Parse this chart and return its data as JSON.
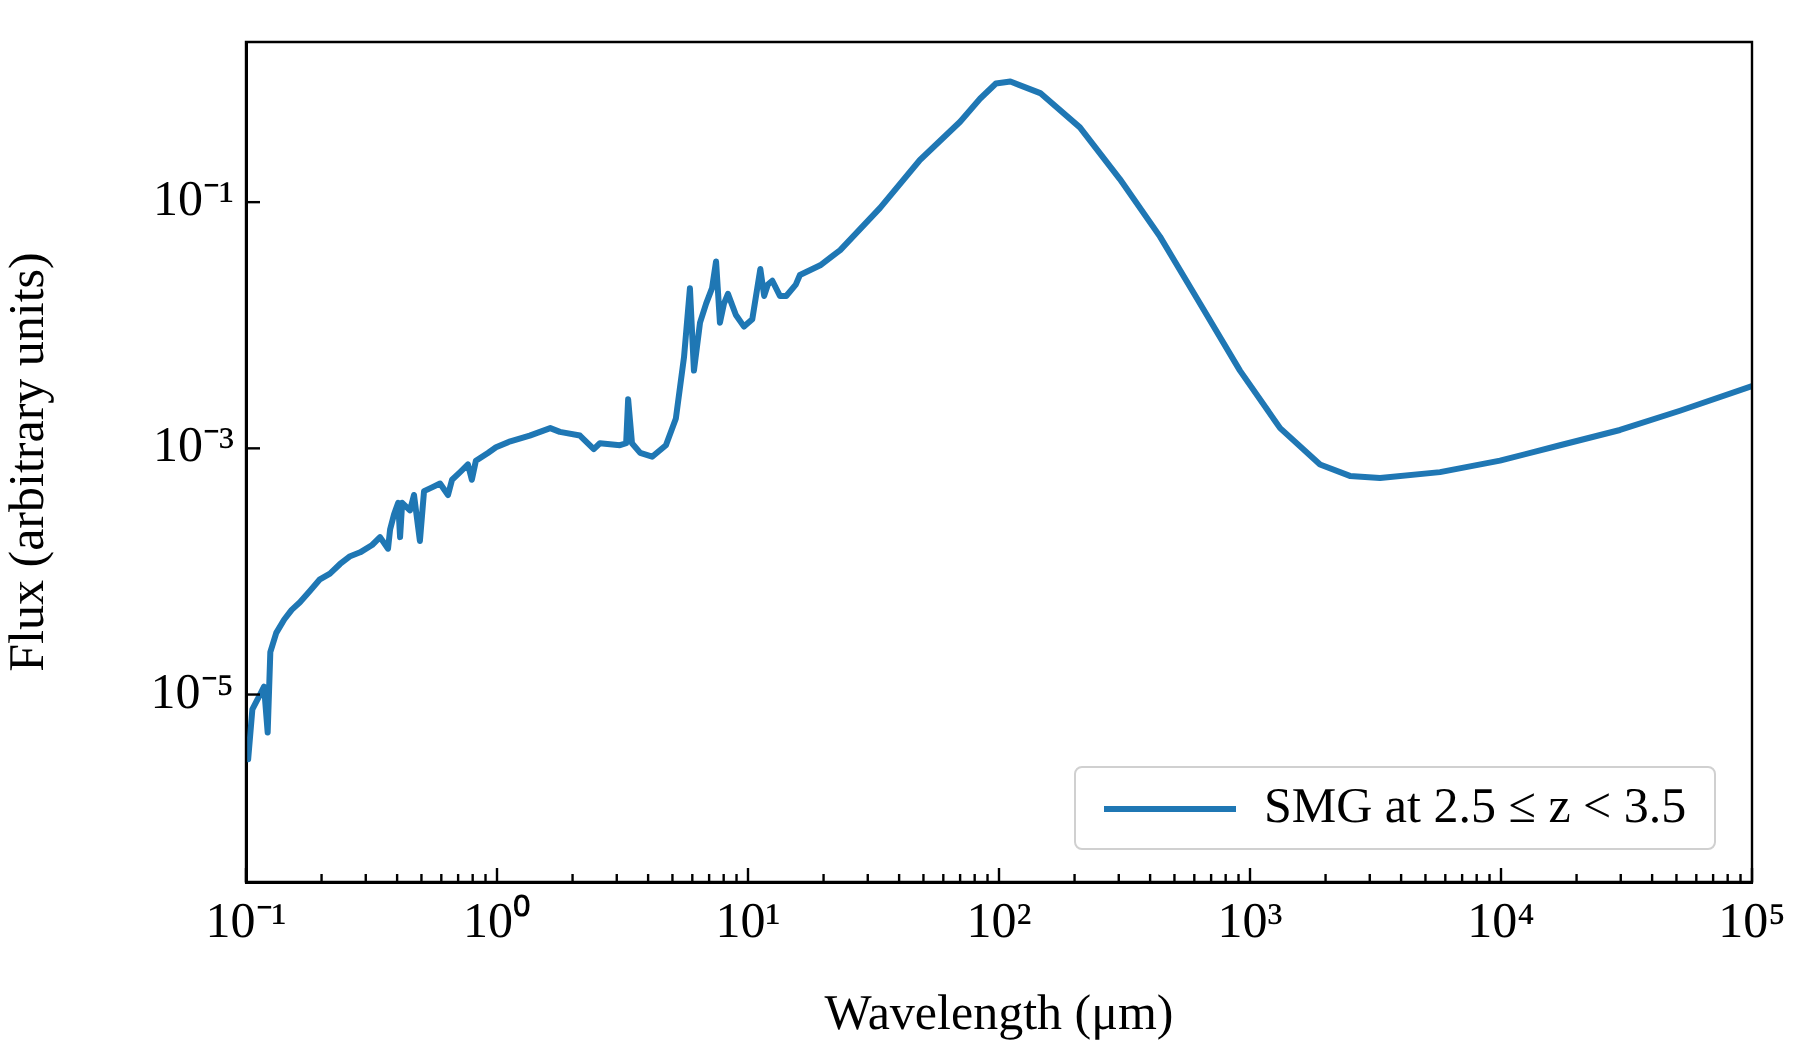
{
  "chart_data": {
    "type": "line",
    "xlabel": "Wavelength (μm)",
    "ylabel": "Flux (arbitrary units)",
    "log": "xy",
    "grid": false,
    "legend": "bottom right",
    "marker": "none",
    "line_style": "solid",
    "xlim": [
      0.1,
      100000
    ],
    "ylim": [
      3e-07,
      2
    ],
    "xticks": [
      {
        "value": 0.1,
        "label": "10⁻¹"
      },
      {
        "value": 0.2,
        "label": null
      },
      {
        "value": 0.3,
        "label": null
      },
      {
        "value": 0.4,
        "label": null
      },
      {
        "value": 0.5,
        "label": null
      },
      {
        "value": 0.6,
        "label": null
      },
      {
        "value": 0.7,
        "label": null
      },
      {
        "value": 0.8,
        "label": null
      },
      {
        "value": 0.9,
        "label": null
      },
      {
        "value": 1,
        "label": "10⁰"
      },
      {
        "value": 2,
        "label": null
      },
      {
        "value": 3,
        "label": null
      },
      {
        "value": 4,
        "label": null
      },
      {
        "value": 5,
        "label": null
      },
      {
        "value": 6,
        "label": null
      },
      {
        "value": 7,
        "label": null
      },
      {
        "value": 8,
        "label": null
      },
      {
        "value": 9,
        "label": null
      },
      {
        "value": 10,
        "label": "10¹"
      },
      {
        "value": 20,
        "label": null
      },
      {
        "value": 30,
        "label": null
      },
      {
        "value": 40,
        "label": null
      },
      {
        "value": 50,
        "label": null
      },
      {
        "value": 60,
        "label": null
      },
      {
        "value": 70,
        "label": null
      },
      {
        "value": 80,
        "label": null
      },
      {
        "value": 90,
        "label": null
      },
      {
        "value": 100,
        "label": "10²"
      },
      {
        "value": 200,
        "label": null
      },
      {
        "value": 300,
        "label": null
      },
      {
        "value": 400,
        "label": null
      },
      {
        "value": 500,
        "label": null
      },
      {
        "value": 600,
        "label": null
      },
      {
        "value": 700,
        "label": null
      },
      {
        "value": 800,
        "label": null
      },
      {
        "value": 900,
        "label": null
      },
      {
        "value": 1000,
        "label": "10³"
      },
      {
        "value": 2000,
        "label": null
      },
      {
        "value": 3000,
        "label": null
      },
      {
        "value": 4000,
        "label": null
      },
      {
        "value": 5000,
        "label": null
      },
      {
        "value": 6000,
        "label": null
      },
      {
        "value": 7000,
        "label": null
      },
      {
        "value": 8000,
        "label": null
      },
      {
        "value": 9000,
        "label": null
      },
      {
        "value": 10000,
        "label": "10⁴"
      },
      {
        "value": 20000,
        "label": null
      },
      {
        "value": 30000,
        "label": null
      },
      {
        "value": 40000,
        "label": null
      },
      {
        "value": 50000,
        "label": null
      },
      {
        "value": 60000,
        "label": null
      },
      {
        "value": 70000,
        "label": null
      },
      {
        "value": 80000,
        "label": null
      },
      {
        "value": 90000,
        "label": null
      },
      {
        "value": 100000,
        "label": "10⁵"
      }
    ],
    "yticks": [
      {
        "value": 1e-05,
        "label": "10⁻⁵"
      },
      {
        "value": 0.001,
        "label": "10⁻³"
      },
      {
        "value": 0.1,
        "label": "10⁻¹"
      }
    ],
    "series": [
      {
        "name": "SMG at 2.5 ≤ z < 3.5",
        "color": "#1f77b4",
        "x": [
          0.102,
          0.106,
          0.114,
          0.118,
          0.122,
          0.125,
          0.132,
          0.142,
          0.152,
          0.164,
          0.18,
          0.197,
          0.216,
          0.237,
          0.26,
          0.285,
          0.318,
          0.342,
          0.368,
          0.375,
          0.389,
          0.404,
          0.411,
          0.419,
          0.45,
          0.467,
          0.493,
          0.512,
          0.551,
          0.593,
          0.638,
          0.662,
          0.713,
          0.766,
          0.794,
          0.824,
          0.92,
          0.991,
          1.13,
          1.35,
          1.63,
          1.78,
          2.14,
          2.43,
          2.57,
          3.09,
          3.27,
          3.33,
          3.45,
          3.72,
          4.15,
          4.71,
          5.16,
          5.56,
          5.87,
          6.09,
          6.44,
          6.81,
          7.19,
          7.46,
          7.73,
          8.02,
          8.32,
          8.95,
          9.64,
          10.4,
          11.2,
          11.6,
          12.0,
          12.5,
          13.4,
          14.2,
          15.5,
          16.1,
          19.4,
          23.3,
          33.6,
          48.4,
          70.0,
          84.0,
          97.2,
          111,
          146,
          210,
          303,
          438,
          632,
          912,
          1318,
          1901,
          2500,
          3296,
          5715,
          9908,
          17180,
          29790,
          51640,
          100000
        ],
        "values": [
          2.98e-06,
          7.57e-06,
          1.01e-05,
          1.16e-05,
          4.92e-06,
          2.21e-05,
          3.17e-05,
          4.07e-05,
          4.87e-05,
          5.62e-05,
          6.97e-05,
          8.63e-05,
          9.61e-05,
          0.000115,
          0.000133,
          0.000143,
          0.000164,
          0.00019,
          0.000153,
          0.000219,
          0.000292,
          0.000361,
          0.00019,
          0.000361,
          0.000313,
          0.000418,
          0.000177,
          0.000449,
          0.000482,
          0.000518,
          0.000418,
          0.000556,
          0.000641,
          0.00074,
          0.000556,
          0.000794,
          0.000918,
          0.00102,
          0.00114,
          0.00127,
          0.00146,
          0.00136,
          0.00127,
          0.000986,
          0.0011,
          0.00106,
          0.0011,
          0.0025,
          0.0011,
          0.000918,
          0.000855,
          0.00106,
          0.00175,
          0.0055,
          0.02,
          0.00428,
          0.0105,
          0.015,
          0.02,
          0.033,
          0.0105,
          0.015,
          0.018,
          0.0121,
          0.00975,
          0.0112,
          0.0286,
          0.0173,
          0.0214,
          0.023,
          0.0173,
          0.0173,
          0.0214,
          0.0256,
          0.0307,
          0.0408,
          0.0898,
          0.22,
          0.45,
          0.692,
          0.92,
          0.955,
          0.769,
          0.405,
          0.154,
          0.0525,
          0.015,
          0.00428,
          0.00146,
          0.00074,
          0.000597,
          0.000575,
          0.000641,
          0.000794,
          0.00106,
          0.00141,
          0.00202,
          0.00321
        ]
      }
    ]
  }
}
